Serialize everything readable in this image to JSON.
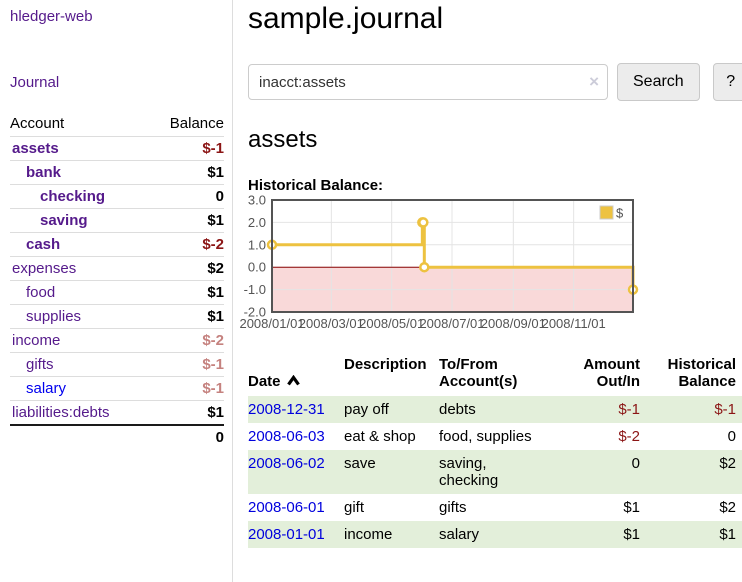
{
  "colors": {
    "purple": "#551a8b",
    "blue": "#0000ee",
    "link_blue": "#0000dd",
    "neg_strong": "#8b1515",
    "neg_soft": "#c5827f",
    "row_green": "#e3efda",
    "gold": "#edc240",
    "pink_band": "#f9d9d9",
    "zero_line": "#8b0000",
    "chart_border": "#545454",
    "grid": "#e4e4e4",
    "tick_text": "#545454",
    "divider": "#dddddd"
  },
  "sidebar": {
    "app_title": "hledger-web",
    "journal_link": "Journal",
    "accounts": {
      "header_account": "Account",
      "header_balance": "Balance",
      "rows": [
        {
          "name": "assets",
          "depth": 0,
          "emphasis": true,
          "color": "purple",
          "balance": "$-1",
          "negative": true
        },
        {
          "name": "bank",
          "depth": 1,
          "emphasis": true,
          "color": "purple",
          "balance": "$1",
          "negative": false
        },
        {
          "name": "checking",
          "depth": 2,
          "emphasis": true,
          "color": "purple",
          "balance": "0",
          "negative": false
        },
        {
          "name": "saving",
          "depth": 2,
          "emphasis": true,
          "color": "purple",
          "balance": "$1",
          "negative": false
        },
        {
          "name": "cash",
          "depth": 1,
          "emphasis": true,
          "color": "purple",
          "balance": "$-2",
          "negative": true
        },
        {
          "name": "expenses",
          "depth": 0,
          "emphasis": false,
          "color": "purple",
          "balance": "$2",
          "negative": false
        },
        {
          "name": "food",
          "depth": 1,
          "emphasis": false,
          "color": "purple",
          "balance": "$1",
          "negative": false
        },
        {
          "name": "supplies",
          "depth": 1,
          "emphasis": false,
          "color": "purple",
          "balance": "$1",
          "negative": false
        },
        {
          "name": "income",
          "depth": 0,
          "emphasis": false,
          "color": "purple",
          "balance": "$-2",
          "negative": true
        },
        {
          "name": "gifts",
          "depth": 1,
          "emphasis": false,
          "color": "purple",
          "balance": "$-1",
          "negative": true
        },
        {
          "name": "salary",
          "depth": 1,
          "emphasis": false,
          "color": "blue",
          "balance": "$-1",
          "negative": true
        },
        {
          "name": "liabilities:debts",
          "depth": 0,
          "emphasis": false,
          "color": "purple",
          "balance": "$1",
          "negative": false
        }
      ],
      "total": "0"
    }
  },
  "main": {
    "title": "sample.journal",
    "search": {
      "value": "inacct:assets",
      "clear_icon": "×",
      "button_label": "Search",
      "help_label": "?"
    },
    "account_heading": "assets",
    "chart_label": "Historical Balance:"
  },
  "chart_data": {
    "type": "line",
    "step": true,
    "title": "Historical Balance of assets",
    "series": [
      {
        "name": "$",
        "points": [
          [
            "2008-01-01",
            1
          ],
          [
            "2008-06-01",
            2
          ],
          [
            "2008-06-02",
            2
          ],
          [
            "2008-06-03",
            0
          ],
          [
            "2008-12-31",
            -1
          ]
        ]
      }
    ],
    "xlim": [
      "2008-01-01",
      "2008-12-31"
    ],
    "ylim": [
      -2,
      3
    ],
    "y_ticks": [
      {
        "v": 3,
        "label": "3.0"
      },
      {
        "v": 2,
        "label": "2.0"
      },
      {
        "v": 1,
        "label": "1.0"
      },
      {
        "v": 0,
        "label": "0.0"
      },
      {
        "v": -1,
        "label": "-1.0"
      },
      {
        "v": -2,
        "label": "-2.0"
      }
    ],
    "x_ticks": [
      {
        "date": "2008-01-01",
        "label": "2008/01/01"
      },
      {
        "date": "2008-03-01",
        "label": "2008/03/01"
      },
      {
        "date": "2008-05-01",
        "label": "2008/05/01"
      },
      {
        "date": "2008-07-01",
        "label": "2008/07/01"
      },
      {
        "date": "2008-09-01",
        "label": "2008/09/01"
      },
      {
        "date": "2008-11-01",
        "label": "2008/11/01"
      }
    ],
    "legend": {
      "label": "$",
      "position": "top-right"
    },
    "grid": true,
    "negative_band": true
  },
  "register": {
    "headers": {
      "date": "Date",
      "description": "Description",
      "accounts": "To/From\nAccount(s)",
      "amount": "Amount\nOut/In",
      "balance": "Historical\nBalance"
    },
    "rows": [
      {
        "date": "2008-12-31",
        "description": "pay off",
        "accounts": "debts",
        "amount": "$-1",
        "amount_negative": true,
        "balance": "$-1",
        "balance_negative": true
      },
      {
        "date": "2008-06-03",
        "description": "eat & shop",
        "accounts": "food, supplies",
        "amount": "$-2",
        "amount_negative": true,
        "balance": "0",
        "balance_negative": false
      },
      {
        "date": "2008-06-02",
        "description": "save",
        "accounts": "saving,\nchecking",
        "amount": "0",
        "amount_negative": false,
        "balance": "$2",
        "balance_negative": false
      },
      {
        "date": "2008-06-01",
        "description": "gift",
        "accounts": "gifts",
        "amount": "$1",
        "amount_negative": false,
        "balance": "$2",
        "balance_negative": false
      },
      {
        "date": "2008-01-01",
        "description": "income",
        "accounts": "salary",
        "amount": "$1",
        "amount_negative": false,
        "balance": "$1",
        "balance_negative": false
      }
    ]
  }
}
